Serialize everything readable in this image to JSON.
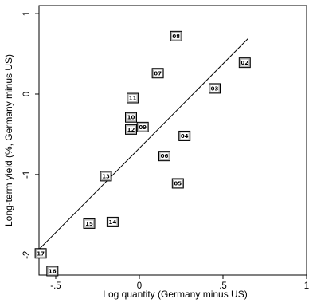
{
  "chart_data": {
    "type": "scatter",
    "xlabel": "Log quantity (Germany minus US)",
    "ylabel": "Long-term yield (%, Germany minus US)",
    "xlim": [
      -0.6,
      1.0
    ],
    "ylim": [
      -2.25,
      1.1
    ],
    "xticks": [
      -0.5,
      0,
      0.5,
      1
    ],
    "xtick_labels": [
      "-.5",
      "0",
      ".5",
      "1"
    ],
    "yticks": [
      -2,
      -1,
      0,
      1
    ],
    "ytick_labels": [
      "-2",
      "-1",
      "0",
      "1"
    ],
    "grid": false,
    "marker_style": "labeled-square",
    "points": [
      {
        "label": "02",
        "x": 0.63,
        "y": 0.39
      },
      {
        "label": "03",
        "x": 0.45,
        "y": 0.07
      },
      {
        "label": "04",
        "x": 0.27,
        "y": -0.52
      },
      {
        "label": "05",
        "x": 0.23,
        "y": -1.11
      },
      {
        "label": "06",
        "x": 0.15,
        "y": -0.77
      },
      {
        "label": "07",
        "x": 0.11,
        "y": 0.26
      },
      {
        "label": "08",
        "x": 0.22,
        "y": 0.72
      },
      {
        "label": "09",
        "x": 0.02,
        "y": -0.41
      },
      {
        "label": "10",
        "x": -0.05,
        "y": -0.29
      },
      {
        "label": "11",
        "x": -0.04,
        "y": -0.05
      },
      {
        "label": "12",
        "x": -0.05,
        "y": -0.44
      },
      {
        "label": "13",
        "x": -0.2,
        "y": -1.02
      },
      {
        "label": "14",
        "x": -0.16,
        "y": -1.59
      },
      {
        "label": "15",
        "x": -0.3,
        "y": -1.61
      },
      {
        "label": "16",
        "x": -0.52,
        "y": -2.2
      },
      {
        "label": "17",
        "x": -0.59,
        "y": -1.98
      }
    ],
    "fit_line": {
      "x": [
        -0.6,
        0.65
      ],
      "y": [
        -1.93,
        0.69
      ]
    }
  }
}
